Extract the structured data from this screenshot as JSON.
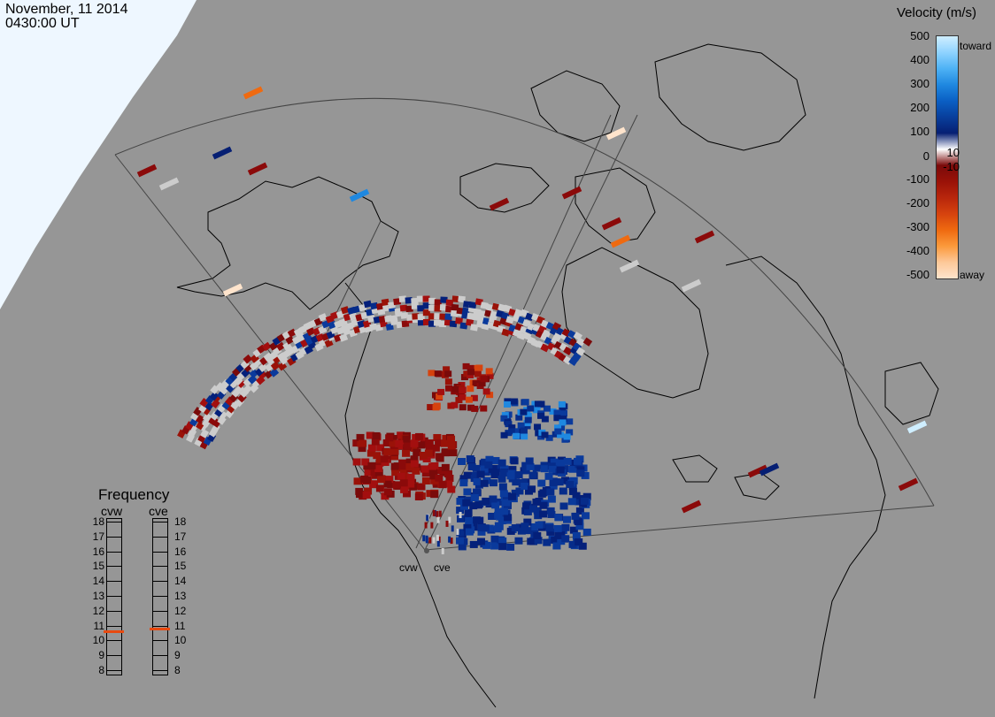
{
  "header": {
    "date": "November, 11 2014",
    "time": "0430:00 UT"
  },
  "colorbar": {
    "title": "Velocity (m/s)",
    "ticks": [
      "500",
      "400",
      "300",
      "200",
      "100",
      "10",
      "0",
      "-10",
      "-100",
      "-200",
      "-300",
      "-400",
      "-500"
    ],
    "toward_label": "toward",
    "away_label": "away",
    "colors": [
      "#cfeeff",
      "#8fd3ff",
      "#4eb2f5",
      "#1f88e0",
      "#0a5fc4",
      "#083f9c",
      "#061f73",
      "#ffffff",
      "#7a0a0a",
      "#9a1208",
      "#b8260c",
      "#d6430e",
      "#ef6a10",
      "#fb9a3c",
      "#fdc899",
      "#ffe4cc"
    ]
  },
  "frequency": {
    "title": "Frequency",
    "radars": [
      "cvw",
      "cve"
    ],
    "labels": [
      "18",
      "17",
      "16",
      "15",
      "14",
      "13",
      "12",
      "11",
      "10",
      "9",
      "8"
    ],
    "cvw_mhz": 10.6,
    "cve_mhz": 10.8,
    "marker_color": "#e84a10"
  },
  "radar_labels": [
    "cvw",
    "cve"
  ],
  "colors": {
    "background": "#969696",
    "land_outline": "#000000",
    "nightside": "#eef7ff",
    "ground_scatter": "#cccccc"
  }
}
